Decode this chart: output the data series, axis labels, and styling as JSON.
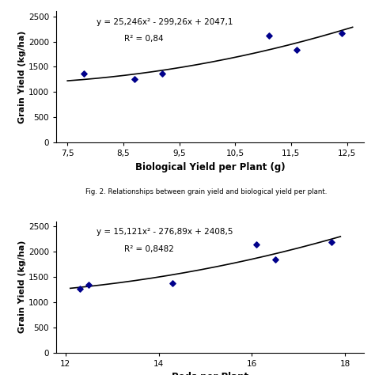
{
  "plot1": {
    "scatter_x": [
      7.8,
      8.7,
      9.2,
      11.1,
      11.6,
      12.4
    ],
    "scatter_y": [
      1360,
      1260,
      1370,
      2120,
      1840,
      2170
    ],
    "poly_coeffs": [
      25.246,
      -299.26,
      2047.1
    ],
    "x_min": 7.5,
    "x_max": 12.6,
    "xlim": [
      7.3,
      12.8
    ],
    "ylim": [
      0,
      2600
    ],
    "xticks": [
      7.5,
      8.5,
      9.5,
      10.5,
      11.5,
      12.5
    ],
    "xticklabels": [
      "7,5",
      "8,5",
      "9,5",
      "10,5",
      "11,5",
      "12,5"
    ],
    "yticks": [
      0,
      500,
      1000,
      1500,
      2000,
      2500
    ],
    "xlabel": "Biological Yield per Plant (g)",
    "ylabel": "Grain Yield (kg/ha)",
    "eq_line1": "y = 25,246x² - 299,26x + 2047,1",
    "eq_line2": "R² = 0,84",
    "caption": "Fig. 2. Relationships between grain yield and biological yield per plant.",
    "dot_color": "#00008B",
    "line_color": "#000000"
  },
  "plot2": {
    "scatter_x": [
      12.5,
      12.3,
      14.3,
      16.1,
      16.5,
      17.7
    ],
    "scatter_y": [
      1340,
      1270,
      1370,
      2140,
      1850,
      2180
    ],
    "poly_coeffs": [
      15.121,
      -276.89,
      2408.5
    ],
    "x_min": 12.1,
    "x_max": 17.9,
    "xlim": [
      11.8,
      18.4
    ],
    "ylim": [
      0,
      2600
    ],
    "xticks": [
      12,
      14,
      16,
      18
    ],
    "xticklabels": [
      "12",
      "14",
      "16",
      "18"
    ],
    "yticks": [
      0,
      500,
      1000,
      1500,
      2000,
      2500
    ],
    "xlabel": "Pods per Plant",
    "ylabel": "Grain Yield (kg/ha)",
    "eq_line1": "y = 15,121x² - 276,89x + 2408,5",
    "eq_line2": "R² = 0,8482",
    "dot_color": "#00008B",
    "line_color": "#000000"
  },
  "background_color": "#ffffff",
  "fig_width": 4.74,
  "fig_height": 4.74
}
